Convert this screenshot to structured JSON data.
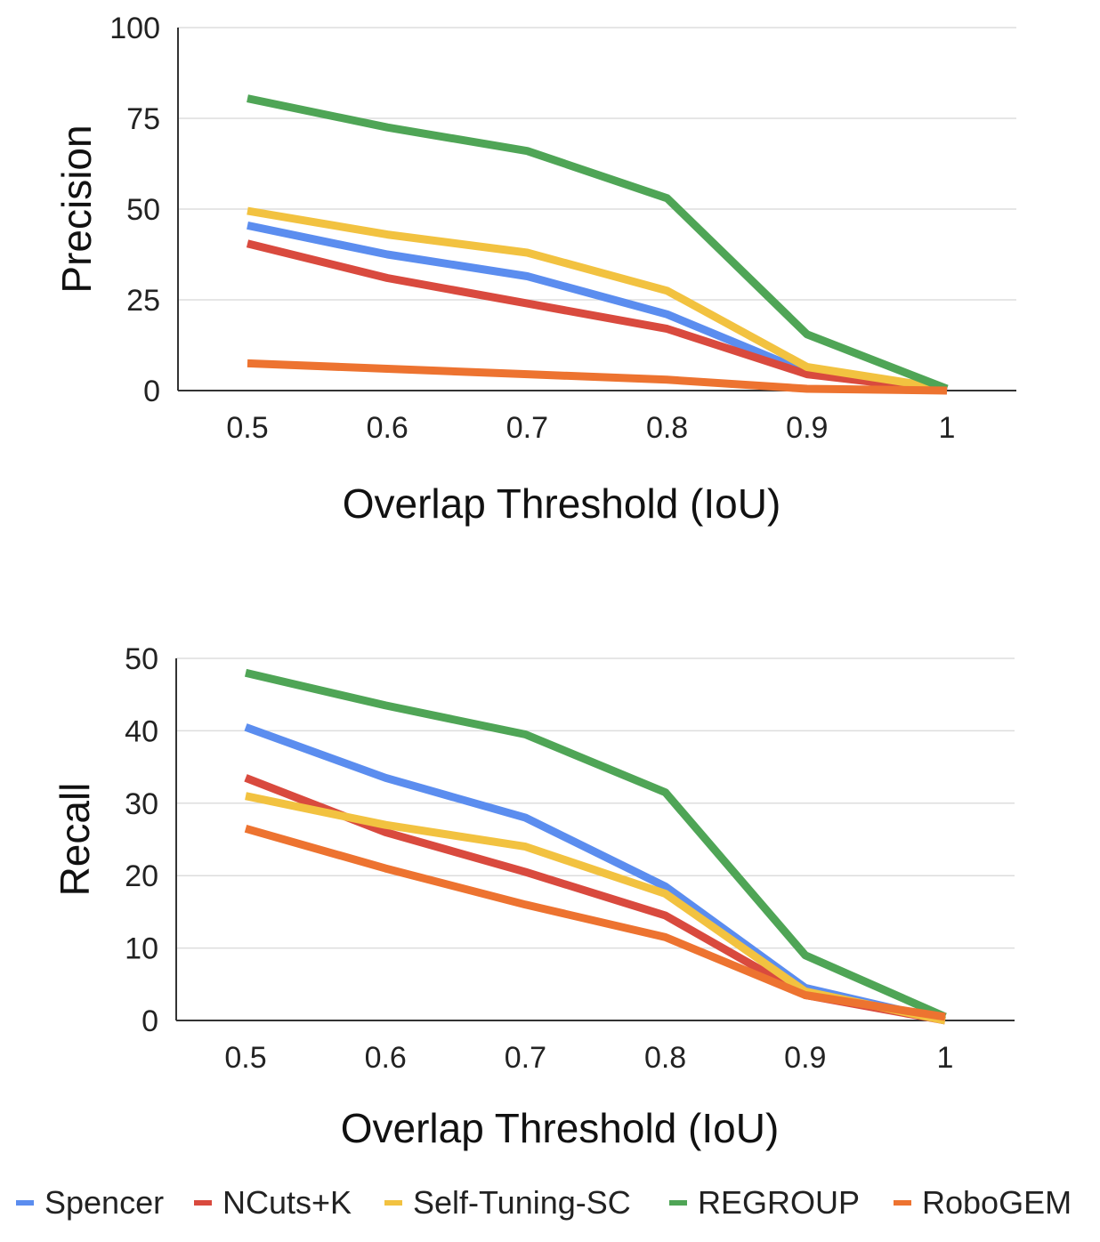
{
  "colors": {
    "Spencer": "#5b8def",
    "NCuts+K": "#d94a3e",
    "Self-Tuning-SC": "#f2c240",
    "REGROUP": "#4fa556",
    "RoboGEM": "#ed7330",
    "grid": "#dddddd",
    "axis": "#333333"
  },
  "chart_data": [
    {
      "type": "line",
      "xlabel": "Overlap Threshold (IoU)",
      "ylabel": "Precision",
      "x": [
        0.5,
        0.6,
        0.7,
        0.8,
        0.9,
        1
      ],
      "x_tick_labels": [
        "0.5",
        "0.6",
        "0.7",
        "0.8",
        "0.9",
        "1"
      ],
      "ylim": [
        0,
        100
      ],
      "y_ticks": [
        0,
        25,
        50,
        75,
        100
      ],
      "grid": true,
      "series": [
        {
          "name": "Spencer",
          "values": [
            45.5,
            37.5,
            31.5,
            21.0,
            5.0,
            0.0
          ]
        },
        {
          "name": "NCuts+K",
          "values": [
            40.5,
            31.0,
            24.0,
            17.0,
            4.5,
            0.0
          ]
        },
        {
          "name": "Self-Tuning-SC",
          "values": [
            49.5,
            43.0,
            38.0,
            27.5,
            6.5,
            0.5
          ]
        },
        {
          "name": "REGROUP",
          "values": [
            80.5,
            72.5,
            66.0,
            53.0,
            15.5,
            0.5
          ]
        },
        {
          "name": "RoboGEM",
          "values": [
            7.5,
            6.0,
            4.5,
            3.0,
            0.5,
            0.0
          ]
        }
      ]
    },
    {
      "type": "line",
      "xlabel": "Overlap Threshold (IoU)",
      "ylabel": "Recall",
      "x": [
        0.5,
        0.6,
        0.7,
        0.8,
        0.9,
        1
      ],
      "x_tick_labels": [
        "0.5",
        "0.6",
        "0.7",
        "0.8",
        "0.9",
        "1"
      ],
      "ylim": [
        0,
        50
      ],
      "y_ticks": [
        0,
        10,
        20,
        30,
        40,
        50
      ],
      "grid": true,
      "series": [
        {
          "name": "Spencer",
          "values": [
            40.5,
            33.5,
            28.0,
            18.5,
            4.5,
            0.0
          ]
        },
        {
          "name": "NCuts+K",
          "values": [
            33.5,
            26.0,
            20.5,
            14.5,
            3.5,
            0.0
          ]
        },
        {
          "name": "Self-Tuning-SC",
          "values": [
            31.0,
            27.0,
            24.0,
            17.5,
            4.0,
            0.0
          ]
        },
        {
          "name": "REGROUP",
          "values": [
            48.0,
            43.5,
            39.5,
            31.5,
            9.0,
            0.5
          ]
        },
        {
          "name": "RoboGEM",
          "values": [
            26.5,
            21.0,
            16.0,
            11.5,
            3.5,
            0.5
          ]
        }
      ]
    }
  ],
  "legend": {
    "placement": "bottom",
    "items": [
      "Spencer",
      "NCuts+K",
      "Self-Tuning-SC",
      "REGROUP",
      "RoboGEM"
    ]
  }
}
